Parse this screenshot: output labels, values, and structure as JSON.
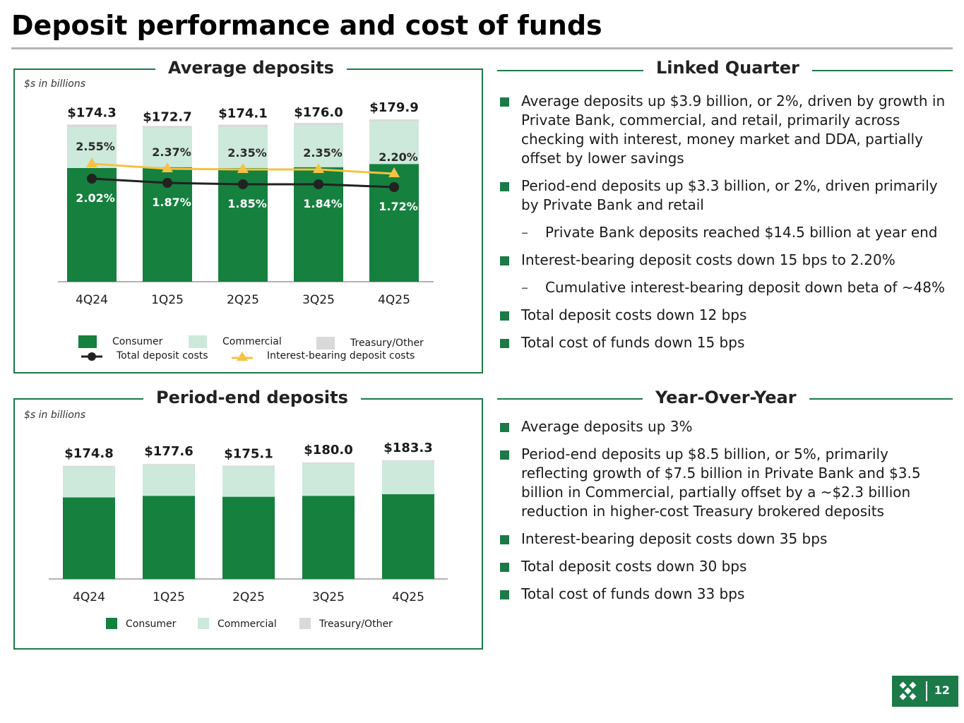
{
  "page": {
    "title": "Deposit performance and cost of funds",
    "page_number": "12",
    "colors": {
      "accent": "#1b7a48",
      "consumer": "#16803f",
      "commercial": "#cde9dc",
      "treasury": "#d9d9d9",
      "total_costs": "#222222",
      "ib_costs": "#f5c242"
    }
  },
  "avg_panel": {
    "title": "Average deposits",
    "units": "$s in billions"
  },
  "pe_panel": {
    "title": "Period-end deposits",
    "units": "$s in billions"
  },
  "chart_data": [
    {
      "type": "bar",
      "title": "Average deposits",
      "ylabel": "$s in billions",
      "categories": [
        "4Q24",
        "1Q25",
        "2Q25",
        "3Q25",
        "4Q25"
      ],
      "totals": [
        "$174.3",
        "$172.7",
        "$174.1",
        "$176.0",
        "$179.9"
      ],
      "total_values": [
        174.3,
        172.7,
        174.1,
        176.0,
        179.9
      ],
      "series": [
        {
          "name": "Consumer",
          "values": [
            126.0,
            127.0,
            126.0,
            127.0,
            130.5
          ]
        },
        {
          "name": "Commercial",
          "values": [
            44.8,
            43.4,
            44.8,
            46.2,
            46.6
          ]
        },
        {
          "name": "Treasury/Other",
          "values": [
            3.5,
            2.3,
            3.3,
            2.8,
            2.8
          ]
        }
      ],
      "lines": [
        {
          "name": "Total deposit costs",
          "values": [
            2.02,
            1.87,
            1.85,
            1.84,
            1.72
          ],
          "labels": [
            "2.02%",
            "1.87%",
            "1.85%",
            "1.84%",
            "1.72%"
          ]
        },
        {
          "name": "Interest-bearing deposit costs",
          "values": [
            2.55,
            2.37,
            2.35,
            2.35,
            2.2
          ],
          "labels": [
            "2.55%",
            "2.37%",
            "2.35%",
            "2.35%",
            "2.20%"
          ]
        }
      ],
      "legend": [
        "Consumer",
        "Commercial",
        "Treasury/Other",
        "Total deposit costs",
        "Interest-bearing deposit costs"
      ]
    },
    {
      "type": "bar",
      "title": "Period-end deposits",
      "ylabel": "$s in billions",
      "categories": [
        "4Q24",
        "1Q25",
        "2Q25",
        "3Q25",
        "4Q25"
      ],
      "totals": [
        "$174.8",
        "$177.6",
        "$175.1",
        "$180.0",
        "$183.3"
      ],
      "total_values": [
        174.8,
        177.6,
        175.1,
        180.0,
        183.3
      ],
      "series": [
        {
          "name": "Consumer",
          "values": [
            126.0,
            128.5,
            127.0,
            128.5,
            131.0
          ]
        },
        {
          "name": "Commercial",
          "values": [
            47.0,
            47.5,
            46.5,
            49.5,
            50.5
          ]
        },
        {
          "name": "Treasury/Other",
          "values": [
            1.8,
            1.6,
            1.6,
            2.0,
            1.8
          ]
        }
      ],
      "legend": [
        "Consumer",
        "Commercial",
        "Treasury/Other"
      ]
    }
  ],
  "linked_quarter": {
    "heading": "Linked Quarter",
    "bullets": [
      {
        "kind": "main",
        "text": "Average deposits up $3.9 billion, or 2%, driven by growth in Private Bank, commercial, and retail, primarily across checking with interest, money market and DDA, partially offset by lower savings"
      },
      {
        "kind": "main",
        "text": "Period-end deposits up $3.3 billion, or 2%, driven primarily by Private Bank and retail"
      },
      {
        "kind": "sub",
        "text": "Private Bank deposits reached $14.5 billion at year end"
      },
      {
        "kind": "main",
        "text": "Interest-bearing deposit costs down 15 bps to 2.20%"
      },
      {
        "kind": "sub",
        "text": "Cumulative interest-bearing deposit down beta of ~48%"
      },
      {
        "kind": "main",
        "text": "Total deposit costs down 12 bps"
      },
      {
        "kind": "main",
        "text": "Total cost of funds down 15 bps"
      }
    ]
  },
  "year_over_year": {
    "heading": "Year-Over-Year",
    "bullets": [
      {
        "kind": "main",
        "text": "Average deposits up 3%"
      },
      {
        "kind": "main",
        "text": "Period-end deposits up $8.5 billion, or 5%, primarily reflecting growth of $7.5 billion in Private Bank and $3.5 billion in Commercial, partially offset by a ~$2.3 billion reduction in higher-cost Treasury brokered deposits"
      },
      {
        "kind": "main",
        "text": "Interest-bearing deposit costs down 35 bps"
      },
      {
        "kind": "main",
        "text": "Total deposit costs down 30 bps"
      },
      {
        "kind": "main",
        "text": "Total cost of funds down 33 bps"
      }
    ]
  }
}
